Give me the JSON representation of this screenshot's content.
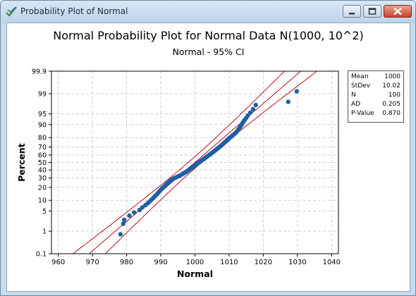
{
  "window": {
    "title": "Probability Plot of Normal",
    "icon": "minitab-graph-icon"
  },
  "window_buttons": [
    "minimize-icon",
    "maximize-icon",
    "close-icon"
  ],
  "colors": {
    "points": "#1f5fa6",
    "lines": "#b4111a",
    "grid": "#cfcfcf"
  },
  "stats": [
    {
      "name": "Mean",
      "value": "1000"
    },
    {
      "name": "StDev",
      "value": "10.02"
    },
    {
      "name": "N",
      "value": "100"
    },
    {
      "name": "AD",
      "value": "0.205"
    },
    {
      "name": "P-Value",
      "value": "0.870"
    }
  ],
  "chart_data": {
    "type": "scatter",
    "title": "Normal Probability Plot for Normal Data N(1000, 10^2)",
    "subtitle": "Normal - 95% CI",
    "xlabel": "Normal",
    "ylabel": "Percent",
    "xlim": [
      958,
      1042
    ],
    "x_ticks": [
      "960",
      "970",
      "980",
      "990",
      "1000",
      "1010",
      "1020",
      "1030",
      "1040"
    ],
    "y_scale": "normal-probability",
    "y_ticks": [
      "0.1",
      "1",
      "5",
      "10",
      "20",
      "30",
      "40",
      "50",
      "60",
      "70",
      "80",
      "90",
      "95",
      "99",
      "99.9"
    ],
    "grid": true,
    "fit": {
      "mean": 1000,
      "stdev": 10.02,
      "ci_level": "95%"
    },
    "points": [
      {
        "x": 978.2,
        "y": 0.75
      },
      {
        "x": 979.0,
        "y": 1.9
      },
      {
        "x": 979.3,
        "y": 2.6
      },
      {
        "x": 980.8,
        "y": 3.6
      },
      {
        "x": 982.2,
        "y": 4.5
      },
      {
        "x": 983.8,
        "y": 5.4
      },
      {
        "x": 984.6,
        "y": 6.4
      },
      {
        "x": 985.5,
        "y": 7.4
      },
      {
        "x": 986.2,
        "y": 8.4
      },
      {
        "x": 986.8,
        "y": 9.4
      },
      {
        "x": 987.3,
        "y": 10.4
      },
      {
        "x": 987.8,
        "y": 11.4
      },
      {
        "x": 988.2,
        "y": 12.4
      },
      {
        "x": 988.6,
        "y": 13.4
      },
      {
        "x": 989.0,
        "y": 14.4
      },
      {
        "x": 989.3,
        "y": 15.4
      },
      {
        "x": 989.6,
        "y": 16.4
      },
      {
        "x": 989.9,
        "y": 17.4
      },
      {
        "x": 990.2,
        "y": 18.4
      },
      {
        "x": 990.6,
        "y": 19.4
      },
      {
        "x": 990.9,
        "y": 20.4
      },
      {
        "x": 991.2,
        "y": 21.4
      },
      {
        "x": 991.5,
        "y": 22.4
      },
      {
        "x": 991.8,
        "y": 23.4
      },
      {
        "x": 992.1,
        "y": 24.4
      },
      {
        "x": 992.4,
        "y": 25.4
      },
      {
        "x": 992.7,
        "y": 26.4
      },
      {
        "x": 993.0,
        "y": 27.4
      },
      {
        "x": 993.4,
        "y": 28.4
      },
      {
        "x": 993.8,
        "y": 29.4
      },
      {
        "x": 994.3,
        "y": 30.4
      },
      {
        "x": 994.8,
        "y": 31.4
      },
      {
        "x": 995.3,
        "y": 32.4
      },
      {
        "x": 995.8,
        "y": 33.4
      },
      {
        "x": 996.2,
        "y": 34.4
      },
      {
        "x": 996.6,
        "y": 35.4
      },
      {
        "x": 997.0,
        "y": 36.4
      },
      {
        "x": 997.4,
        "y": 37.4
      },
      {
        "x": 997.7,
        "y": 38.4
      },
      {
        "x": 998.0,
        "y": 39.4
      },
      {
        "x": 998.3,
        "y": 40.4
      },
      {
        "x": 998.6,
        "y": 41.4
      },
      {
        "x": 998.9,
        "y": 42.4
      },
      {
        "x": 999.2,
        "y": 43.4
      },
      {
        "x": 999.5,
        "y": 44.4
      },
      {
        "x": 999.8,
        "y": 45.4
      },
      {
        "x": 1000.1,
        "y": 46.4
      },
      {
        "x": 1000.4,
        "y": 47.4
      },
      {
        "x": 1000.7,
        "y": 48.4
      },
      {
        "x": 1001.0,
        "y": 49.4
      },
      {
        "x": 1001.3,
        "y": 50.4
      },
      {
        "x": 1001.6,
        "y": 51.4
      },
      {
        "x": 1001.9,
        "y": 52.4
      },
      {
        "x": 1002.2,
        "y": 53.4
      },
      {
        "x": 1002.5,
        "y": 54.4
      },
      {
        "x": 1002.8,
        "y": 55.4
      },
      {
        "x": 1003.1,
        "y": 56.4
      },
      {
        "x": 1003.4,
        "y": 57.4
      },
      {
        "x": 1003.7,
        "y": 58.4
      },
      {
        "x": 1004.0,
        "y": 59.4
      },
      {
        "x": 1004.3,
        "y": 60.4
      },
      {
        "x": 1004.6,
        "y": 61.4
      },
      {
        "x": 1004.9,
        "y": 62.4
      },
      {
        "x": 1005.2,
        "y": 63.4
      },
      {
        "x": 1005.5,
        "y": 64.4
      },
      {
        "x": 1005.8,
        "y": 65.4
      },
      {
        "x": 1006.1,
        "y": 66.4
      },
      {
        "x": 1006.4,
        "y": 67.4
      },
      {
        "x": 1006.7,
        "y": 68.4
      },
      {
        "x": 1007.0,
        "y": 69.4
      },
      {
        "x": 1007.3,
        "y": 70.4
      },
      {
        "x": 1007.6,
        "y": 71.4
      },
      {
        "x": 1007.9,
        "y": 72.4
      },
      {
        "x": 1008.2,
        "y": 73.4
      },
      {
        "x": 1008.5,
        "y": 74.4
      },
      {
        "x": 1008.8,
        "y": 75.4
      },
      {
        "x": 1009.1,
        "y": 76.4
      },
      {
        "x": 1009.4,
        "y": 77.4
      },
      {
        "x": 1009.7,
        "y": 78.4
      },
      {
        "x": 1010.0,
        "y": 79.4
      },
      {
        "x": 1010.4,
        "y": 80.4
      },
      {
        "x": 1010.8,
        "y": 81.4
      },
      {
        "x": 1011.2,
        "y": 82.4
      },
      {
        "x": 1011.6,
        "y": 83.4
      },
      {
        "x": 1012.0,
        "y": 84.4
      },
      {
        "x": 1012.3,
        "y": 85.4
      },
      {
        "x": 1012.6,
        "y": 86.4
      },
      {
        "x": 1012.9,
        "y": 87.4
      },
      {
        "x": 1013.2,
        "y": 88.4
      },
      {
        "x": 1013.5,
        "y": 89.4
      },
      {
        "x": 1013.8,
        "y": 90.4
      },
      {
        "x": 1014.1,
        "y": 91.4
      },
      {
        "x": 1014.5,
        "y": 92.4
      },
      {
        "x": 1015.0,
        "y": 93.4
      },
      {
        "x": 1015.5,
        "y": 94.4
      },
      {
        "x": 1016.2,
        "y": 95.4
      },
      {
        "x": 1017.0,
        "y": 96.4
      },
      {
        "x": 1017.8,
        "y": 97.4
      },
      {
        "x": 1027.3,
        "y": 98.0
      },
      {
        "x": 1029.8,
        "y": 99.2
      }
    ]
  }
}
